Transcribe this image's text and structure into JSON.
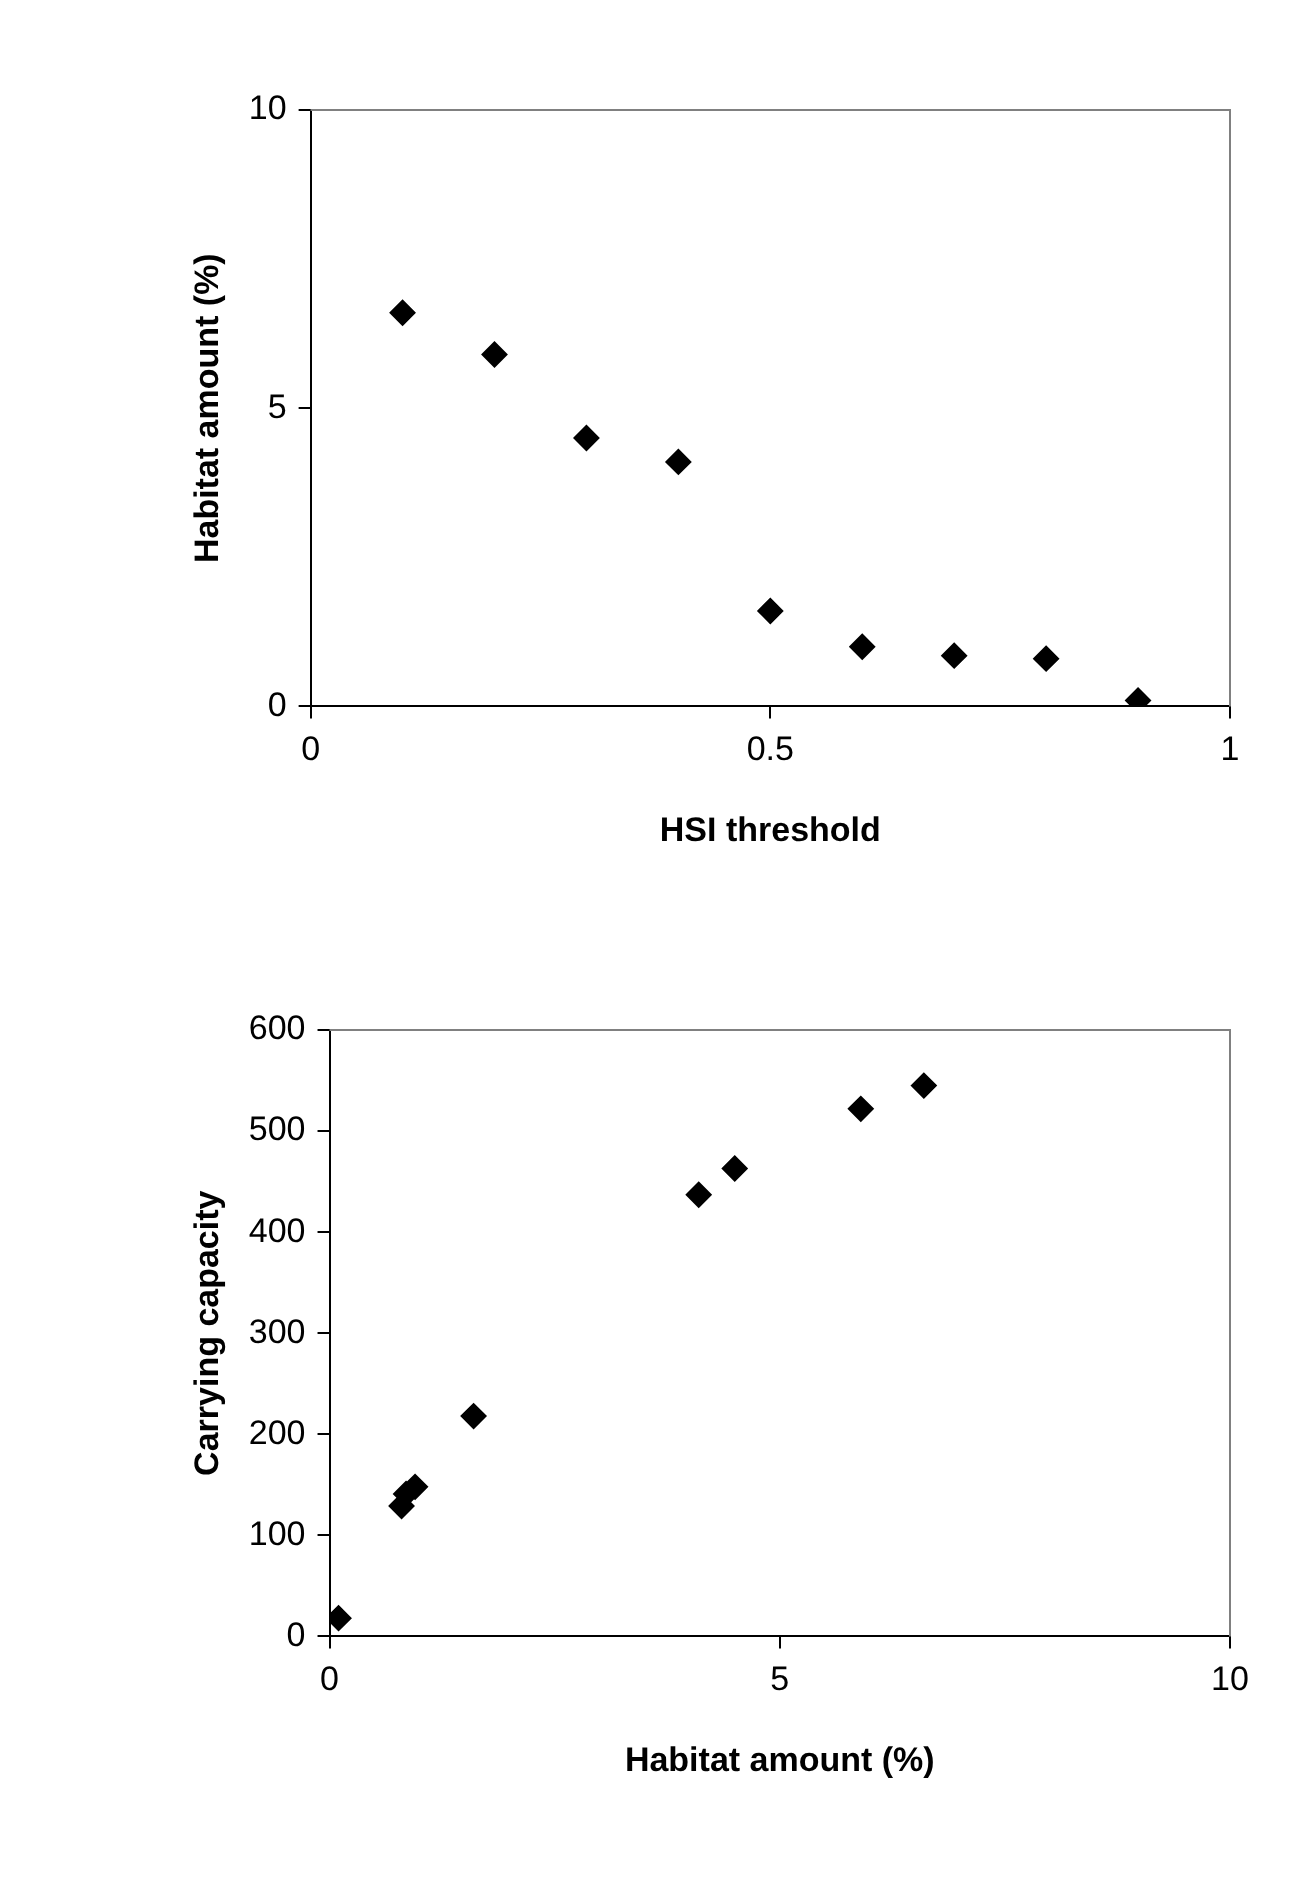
{
  "chart_data": [
    {
      "type": "scatter",
      "xlabel": "HSI threshold",
      "ylabel": "Habitat amount (%)",
      "marker": "diamond",
      "grid": false,
      "legend": false,
      "xlim": [
        0,
        1
      ],
      "xticks": [
        0,
        0.5,
        1
      ],
      "ylim": [
        0,
        10
      ],
      "yticks": [
        0,
        5,
        10
      ],
      "series": [
        {
          "color": "#000000",
          "x": [
            0.1,
            0.2,
            0.3,
            0.4,
            0.5,
            0.6,
            0.7,
            0.8,
            0.9
          ],
          "values": [
            6.6,
            5.9,
            4.5,
            4.1,
            1.6,
            1.0,
            0.85,
            0.8,
            0.1
          ]
        }
      ]
    },
    {
      "type": "scatter",
      "xlabel": "Habitat amount (%)",
      "ylabel": "Carrying capacity",
      "marker": "diamond",
      "grid": false,
      "legend": false,
      "xlim": [
        0,
        10
      ],
      "xticks": [
        0,
        5,
        10
      ],
      "ylim": [
        0,
        600
      ],
      "yticks": [
        0,
        100,
        200,
        300,
        400,
        500,
        600
      ],
      "series": [
        {
          "color": "#000000",
          "x": [
            0.1,
            0.8,
            0.85,
            0.95,
            1.6,
            4.1,
            4.5,
            5.9,
            6.6
          ],
          "values": [
            18,
            129,
            141,
            148,
            218,
            437,
            463,
            522,
            545
          ]
        }
      ]
    }
  ]
}
